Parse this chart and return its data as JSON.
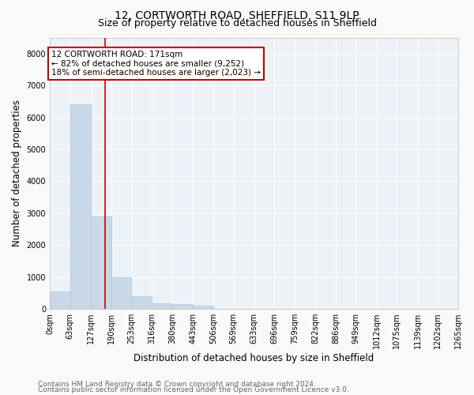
{
  "title": "12, CORTWORTH ROAD, SHEFFIELD, S11 9LP",
  "subtitle": "Size of property relative to detached houses in Sheffield",
  "xlabel": "Distribution of detached houses by size in Sheffield",
  "ylabel": "Number of detached properties",
  "bar_color": "#c9d9e8",
  "bar_edge_color": "#a8c4d8",
  "vline_x": 171,
  "vline_color": "#cc0000",
  "annotation_box_color": "#cc0000",
  "annotation_lines": [
    "12 CORTWORTH ROAD: 171sqm",
    "← 82% of detached houses are smaller (9,252)",
    "18% of semi-detached houses are larger (2,023) →"
  ],
  "ylim": [
    0,
    8500
  ],
  "yticks": [
    0,
    1000,
    2000,
    3000,
    4000,
    5000,
    6000,
    7000,
    8000
  ],
  "bin_edges": [
    0,
    63,
    127,
    190,
    253,
    316,
    380,
    443,
    506,
    569,
    633,
    696,
    759,
    822,
    886,
    949,
    1012,
    1075,
    1139,
    1202,
    1265
  ],
  "bin_labels": [
    "0sqm",
    "63sqm",
    "127sqm",
    "190sqm",
    "253sqm",
    "316sqm",
    "380sqm",
    "443sqm",
    "506sqm",
    "569sqm",
    "633sqm",
    "696sqm",
    "759sqm",
    "822sqm",
    "886sqm",
    "949sqm",
    "1012sqm",
    "1075sqm",
    "1139sqm",
    "1202sqm",
    "1265sqm"
  ],
  "counts": [
    550,
    6400,
    2900,
    980,
    400,
    180,
    150,
    100,
    0,
    0,
    0,
    0,
    0,
    0,
    0,
    0,
    0,
    0,
    0,
    0
  ],
  "footer_line1": "Contains HM Land Registry data © Crown copyright and database right 2024.",
  "footer_line2": "Contains public sector information licensed under the Open Government Licence v3.0.",
  "background_color": "#edf2f7",
  "grid_color": "#ffffff",
  "fig_background": "#f9f9f9",
  "title_fontsize": 10,
  "subtitle_fontsize": 9,
  "axis_label_fontsize": 8.5,
  "tick_fontsize": 7,
  "annotation_fontsize": 7.5,
  "footer_fontsize": 6.5
}
